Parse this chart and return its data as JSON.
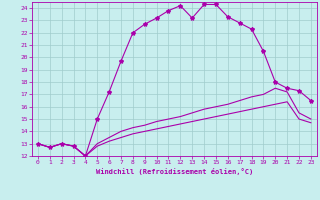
{
  "xlabel": "Windchill (Refroidissement éolien,°C)",
  "ylabel": "",
  "xlim": [
    -0.5,
    23.5
  ],
  "ylim": [
    12,
    24.5
  ],
  "xticks": [
    0,
    1,
    2,
    3,
    4,
    5,
    6,
    7,
    8,
    9,
    10,
    11,
    12,
    13,
    14,
    15,
    16,
    17,
    18,
    19,
    20,
    21,
    22,
    23
  ],
  "yticks": [
    12,
    13,
    14,
    15,
    16,
    17,
    18,
    19,
    20,
    21,
    22,
    23,
    24
  ],
  "bg_color": "#c8eeee",
  "grid_color": "#a0cccc",
  "line_color": "#aa00aa",
  "line1_x": [
    0,
    1,
    2,
    3,
    4,
    5,
    6,
    7,
    8,
    9,
    10,
    11,
    12,
    13,
    14,
    15,
    16,
    17,
    18,
    19,
    20,
    21,
    22,
    23
  ],
  "line1_y": [
    13.0,
    12.7,
    13.0,
    12.8,
    12.0,
    15.0,
    17.2,
    19.7,
    22.0,
    22.7,
    23.2,
    23.8,
    24.2,
    23.2,
    24.3,
    24.3,
    23.3,
    22.8,
    22.3,
    20.5,
    18.0,
    17.5,
    17.3,
    16.5
  ],
  "line2_x": [
    0,
    1,
    2,
    3,
    4,
    5,
    6,
    7,
    8,
    9,
    10,
    11,
    12,
    13,
    14,
    15,
    16,
    17,
    18,
    19,
    20,
    21,
    22,
    23
  ],
  "line2_y": [
    13.0,
    12.7,
    13.0,
    12.8,
    12.0,
    13.0,
    13.5,
    14.0,
    14.3,
    14.5,
    14.8,
    15.0,
    15.2,
    15.5,
    15.8,
    16.0,
    16.2,
    16.5,
    16.8,
    17.0,
    17.5,
    17.2,
    15.5,
    15.0
  ],
  "line3_x": [
    0,
    1,
    2,
    3,
    4,
    5,
    6,
    7,
    8,
    9,
    10,
    11,
    12,
    13,
    14,
    15,
    16,
    17,
    18,
    19,
    20,
    21,
    22,
    23
  ],
  "line3_y": [
    13.0,
    12.7,
    13.0,
    12.8,
    12.0,
    12.8,
    13.2,
    13.5,
    13.8,
    14.0,
    14.2,
    14.4,
    14.6,
    14.8,
    15.0,
    15.2,
    15.4,
    15.6,
    15.8,
    16.0,
    16.2,
    16.4,
    15.0,
    14.7
  ],
  "marker": "*",
  "markersize": 3,
  "linewidth": 0.8,
  "tick_fontsize": 4.5,
  "xlabel_fontsize": 5.0
}
